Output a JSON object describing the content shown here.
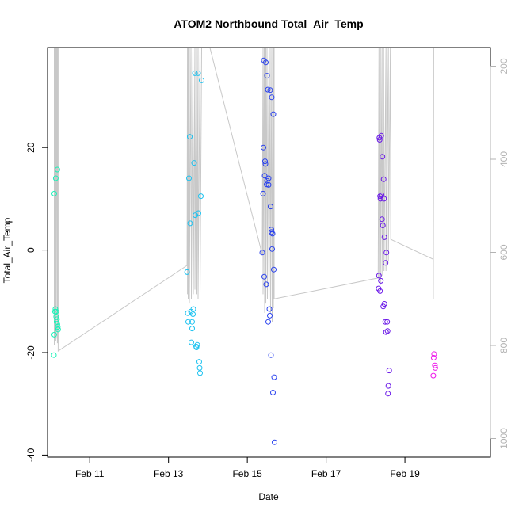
{
  "chart_data": {
    "type": "scatter",
    "title": "ATOM2 Northbound Total_Air_Temp",
    "xlabel": "Date",
    "ylabel": "Total_Air_Temp",
    "x_ticks": [
      "Feb 11",
      "Feb 13",
      "Feb 15",
      "Feb 17",
      "Feb 19"
    ],
    "x_tick_days": [
      11,
      13,
      15,
      17,
      19
    ],
    "xlim_days": [
      9.93,
      21.17
    ],
    "y_ticks": [
      -40,
      -20,
      0,
      20
    ],
    "ylim": [
      -40.4,
      39.5
    ],
    "y2_ticks": [
      200,
      400,
      600,
      800,
      1000
    ],
    "y2lim": [
      1040,
      160
    ],
    "grid": false,
    "points_day_temp": [
      [
        10.09,
        -20.5
      ],
      [
        10.1,
        -16.5
      ],
      [
        10.1,
        11.0
      ],
      [
        10.12,
        -12.0
      ],
      [
        10.13,
        -11.5
      ],
      [
        10.14,
        14.0
      ],
      [
        10.15,
        -12.0
      ],
      [
        10.15,
        -13.0
      ],
      [
        10.16,
        -14.0
      ],
      [
        10.17,
        -13.5
      ],
      [
        10.18,
        15.7
      ],
      [
        10.18,
        -14.5
      ],
      [
        10.19,
        -15.0
      ],
      [
        10.2,
        -15.5
      ],
      [
        13.47,
        -4.3
      ],
      [
        13.49,
        -12.3
      ],
      [
        13.5,
        -14.0
      ],
      [
        13.52,
        14.0
      ],
      [
        13.54,
        22.1
      ],
      [
        13.55,
        5.2
      ],
      [
        13.57,
        -12.0
      ],
      [
        13.58,
        -18.0
      ],
      [
        13.6,
        -14.0
      ],
      [
        13.6,
        -15.3
      ],
      [
        13.62,
        -12.5
      ],
      [
        13.63,
        -11.5
      ],
      [
        13.65,
        17.0
      ],
      [
        13.67,
        34.5
      ],
      [
        13.68,
        6.8
      ],
      [
        13.7,
        -18.8
      ],
      [
        13.71,
        -19.0
      ],
      [
        13.73,
        -18.5
      ],
      [
        13.75,
        34.5
      ],
      [
        13.76,
        7.2
      ],
      [
        13.78,
        -21.8
      ],
      [
        13.79,
        -23.0
      ],
      [
        13.8,
        -24.0
      ],
      [
        13.82,
        10.5
      ],
      [
        13.84,
        33.1
      ],
      [
        15.38,
        -0.5
      ],
      [
        15.4,
        11.0
      ],
      [
        15.41,
        20.0
      ],
      [
        15.42,
        37.0
      ],
      [
        15.43,
        -5.2
      ],
      [
        15.44,
        14.5
      ],
      [
        15.45,
        17.3
      ],
      [
        15.46,
        16.8
      ],
      [
        15.47,
        36.6
      ],
      [
        15.48,
        -6.7
      ],
      [
        15.49,
        12.8
      ],
      [
        15.5,
        13.5
      ],
      [
        15.5,
        34.0
      ],
      [
        15.52,
        31.3
      ],
      [
        15.53,
        -14.0
      ],
      [
        15.54,
        14.0
      ],
      [
        15.54,
        12.7
      ],
      [
        15.56,
        -11.5
      ],
      [
        15.57,
        -12.8
      ],
      [
        15.58,
        31.2
      ],
      [
        15.59,
        8.5
      ],
      [
        15.6,
        -20.5
      ],
      [
        15.61,
        3.5
      ],
      [
        15.61,
        4.0
      ],
      [
        15.62,
        29.8
      ],
      [
        15.63,
        0.2
      ],
      [
        15.64,
        3.2
      ],
      [
        15.65,
        -27.8
      ],
      [
        15.66,
        26.5
      ],
      [
        15.67,
        -3.8
      ],
      [
        15.68,
        -24.8
      ],
      [
        15.69,
        -37.5
      ],
      [
        18.33,
        -7.5
      ],
      [
        18.34,
        -5.0
      ],
      [
        18.35,
        21.9
      ],
      [
        18.36,
        21.5
      ],
      [
        18.37,
        10.5
      ],
      [
        18.37,
        -8.0
      ],
      [
        18.38,
        10.0
      ],
      [
        18.39,
        -6.0
      ],
      [
        18.4,
        22.3
      ],
      [
        18.41,
        10.7
      ],
      [
        18.42,
        6.0
      ],
      [
        18.43,
        18.2
      ],
      [
        18.44,
        4.8
      ],
      [
        18.45,
        -11.0
      ],
      [
        18.46,
        13.8
      ],
      [
        18.47,
        10.0
      ],
      [
        18.48,
        2.5
      ],
      [
        18.48,
        -10.5
      ],
      [
        18.5,
        -14.0
      ],
      [
        18.51,
        -2.5
      ],
      [
        18.52,
        -16.0
      ],
      [
        18.53,
        -0.5
      ],
      [
        18.55,
        -14.0
      ],
      [
        18.56,
        -15.8
      ],
      [
        18.57,
        -28.0
      ],
      [
        18.58,
        -26.5
      ],
      [
        18.6,
        -23.5
      ],
      [
        19.72,
        -24.5
      ],
      [
        19.73,
        -21.0
      ],
      [
        19.74,
        -20.3
      ],
      [
        19.76,
        -22.5
      ],
      [
        19.77,
        -23.0
      ]
    ],
    "pressure_trace_day_hpa": [
      [
        10.1,
        160
      ],
      [
        10.1,
        800
      ],
      [
        10.11,
        160
      ],
      [
        10.11,
        780
      ],
      [
        10.12,
        160
      ],
      [
        10.14,
        160
      ],
      [
        10.14,
        790
      ],
      [
        10.15,
        160
      ],
      [
        10.15,
        785
      ],
      [
        10.17,
        160
      ],
      [
        10.18,
        160
      ],
      [
        10.18,
        795
      ],
      [
        10.2,
        160
      ],
      [
        10.2,
        812
      ],
      [
        13.47,
        628
      ],
      [
        13.48,
        160
      ],
      [
        13.48,
        690
      ],
      [
        13.5,
        160
      ],
      [
        13.5,
        700
      ],
      [
        13.53,
        160
      ],
      [
        13.53,
        710
      ],
      [
        13.57,
        160
      ],
      [
        13.58,
        700
      ],
      [
        13.62,
        160
      ],
      [
        13.63,
        690
      ],
      [
        13.67,
        160
      ],
      [
        13.67,
        680
      ],
      [
        13.71,
        160
      ],
      [
        13.72,
        690
      ],
      [
        13.75,
        160
      ],
      [
        13.75,
        700
      ],
      [
        13.8,
        160
      ],
      [
        13.8,
        690
      ],
      [
        13.84,
        160
      ],
      [
        14.05,
        160
      ],
      [
        15.38,
        605
      ],
      [
        15.4,
        160
      ],
      [
        15.4,
        690
      ],
      [
        15.43,
        160
      ],
      [
        15.44,
        730
      ],
      [
        15.47,
        160
      ],
      [
        15.47,
        710
      ],
      [
        15.5,
        160
      ],
      [
        15.51,
        700
      ],
      [
        15.55,
        160
      ],
      [
        15.55,
        720
      ],
      [
        15.58,
        160
      ],
      [
        15.59,
        730
      ],
      [
        15.62,
        160
      ],
      [
        15.63,
        750
      ],
      [
        15.66,
        160
      ],
      [
        15.66,
        720
      ],
      [
        15.68,
        160
      ],
      [
        15.68,
        700
      ],
      [
        18.32,
        655
      ],
      [
        18.34,
        160
      ],
      [
        18.35,
        660
      ],
      [
        18.38,
        160
      ],
      [
        18.38,
        670
      ],
      [
        18.42,
        160
      ],
      [
        18.42,
        650
      ],
      [
        18.46,
        160
      ],
      [
        18.47,
        640
      ],
      [
        18.52,
        160
      ],
      [
        18.52,
        640
      ],
      [
        18.58,
        160
      ],
      [
        18.58,
        620
      ],
      [
        18.63,
        160
      ],
      [
        18.64,
        572
      ],
      [
        19.72,
        615
      ],
      [
        19.72,
        700
      ],
      [
        19.73,
        160
      ]
    ],
    "colors": {
      "trace": "#c8c8c8",
      "axis": "#000000",
      "right_axis": "#b3b3b3",
      "group_colors": [
        "#1af2b8",
        "#1cc2f0",
        "#2840ee",
        "#6a18e8",
        "#ee18ea"
      ],
      "group_day_breaks": [
        11.0,
        14.5,
        17.0,
        19.5
      ]
    }
  }
}
